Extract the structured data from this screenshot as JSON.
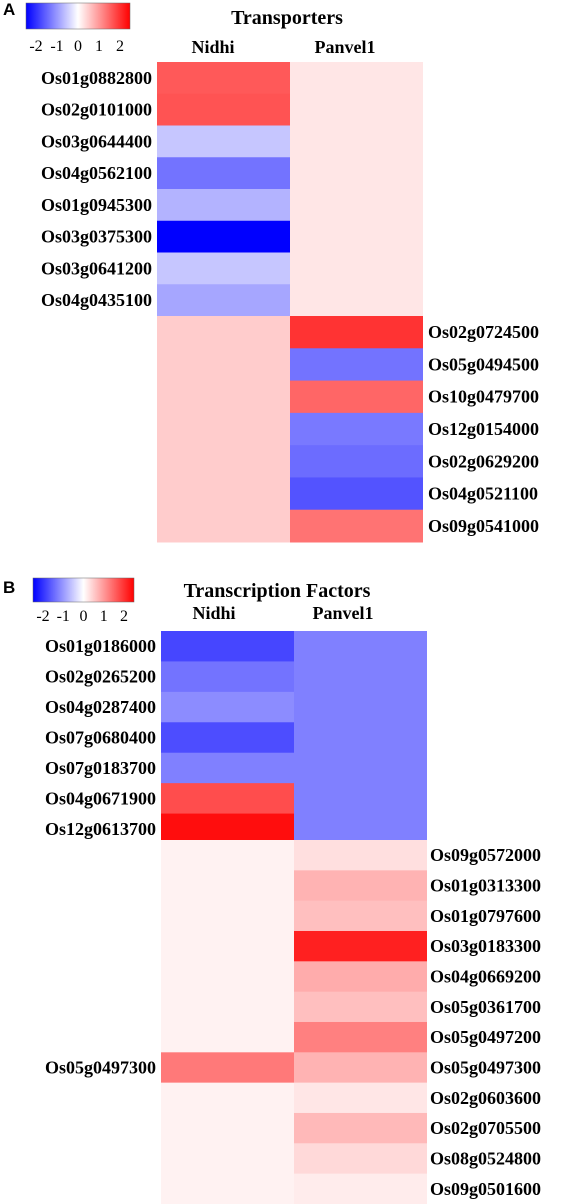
{
  "chart_data": [
    {
      "panel": "A",
      "type": "heatmap",
      "title": "Transporters",
      "columns": [
        "Nidhi",
        "Panvel1"
      ],
      "colorbar": {
        "range": [
          -2,
          2
        ],
        "ticks": [
          "-2",
          "-1",
          "0",
          "1",
          "2"
        ],
        "low": "#0000ff",
        "mid": "#ffffff",
        "high": "#ff0000"
      },
      "row_groups": [
        {
          "label_side": "left",
          "rows": [
            "Os01g0882800",
            "Os02g0101000",
            "Os03g0644400",
            "Os04g0562100",
            "Os01g0945300",
            "Os03g0375300",
            "Os03g0641200",
            "Os04g0435100"
          ],
          "Nidhi": [
            1.3,
            1.35,
            -0.45,
            -1.1,
            -0.6,
            -2.0,
            -0.45,
            -0.7
          ],
          "Panvel1": [
            0.2,
            0.2,
            0.2,
            0.2,
            0.2,
            0.2,
            0.2,
            0.2
          ]
        },
        {
          "label_side": "right",
          "rows": [
            "Os02g0724500",
            "Os05g0494500",
            "Os10g0479700",
            "Os12g0154000",
            "Os02g0629200",
            "Os04g0521100",
            "Os09g0541000"
          ],
          "Nidhi": [
            0.4,
            0.4,
            0.4,
            0.4,
            0.4,
            0.4,
            0.4
          ],
          "Panvel1": [
            1.6,
            -1.1,
            1.2,
            -1.05,
            -1.15,
            -1.35,
            1.1
          ]
        }
      ]
    },
    {
      "panel": "B",
      "type": "heatmap",
      "title": "Transcription Factors",
      "columns": [
        "Nidhi",
        "Panvel1"
      ],
      "colorbar": {
        "range": [
          -2,
          2
        ],
        "ticks": [
          "-2",
          "-1",
          "0",
          "1",
          "2"
        ],
        "low": "#0000ff",
        "mid": "#ffffff",
        "high": "#ff0000"
      },
      "row_groups": [
        {
          "label_side": "left",
          "rows": [
            "Os01g0186000",
            "Os02g0265200",
            "Os04g0287400",
            "Os07g0680400",
            "Os07g0183700",
            "Os04g0671900",
            "Os12g0613700"
          ],
          "Nidhi": [
            -1.45,
            -1.1,
            -0.9,
            -1.4,
            -1.0,
            1.4,
            1.9
          ],
          "Panvel1": [
            -1.0,
            -1.0,
            -1.0,
            -1.0,
            -1.0,
            -1.0,
            -1.0
          ]
        },
        {
          "label_side": "right",
          "rows": [
            "Os09g0572000",
            "Os01g0313300",
            "Os01g0797600",
            "Os03g0183300",
            "Os04g0669200",
            "Os05g0361700",
            "Os05g0497200",
            "Os05g0497300",
            "Os02g0603600",
            "Os02g0705500",
            "Os08g0524800",
            "Os09g0501600"
          ],
          "left_label": {
            "row": 7,
            "text": "Os05g0497300"
          },
          "Nidhi": [
            0.1,
            0.1,
            0.1,
            0.1,
            0.1,
            0.1,
            0.1,
            1.05,
            0.1,
            0.1,
            0.1,
            0.1
          ],
          "Panvel1": [
            0.25,
            0.6,
            0.5,
            1.75,
            0.65,
            0.5,
            1.0,
            0.6,
            0.2,
            0.55,
            0.3,
            0.15
          ]
        }
      ]
    }
  ]
}
